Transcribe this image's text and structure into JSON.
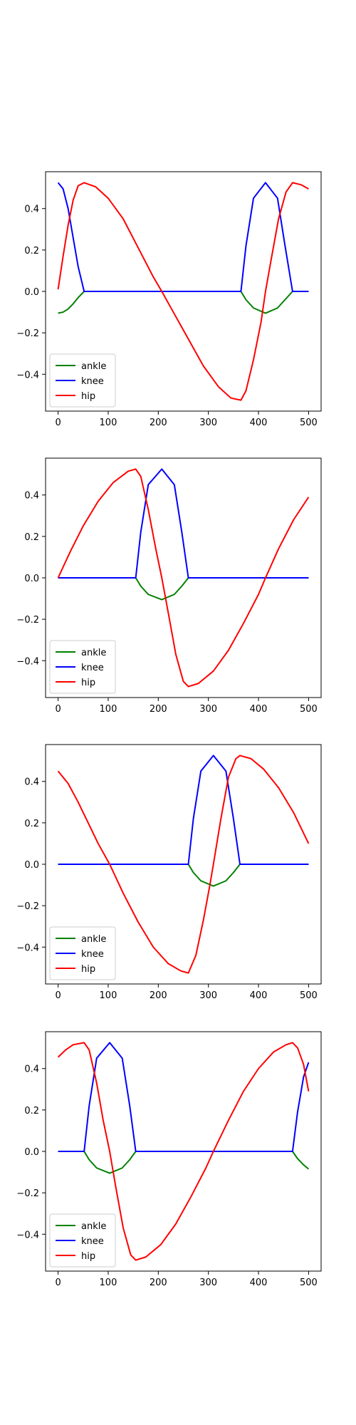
{
  "chart_data": [
    {
      "type": "line",
      "xlim": [
        -25,
        525
      ],
      "ylim": [
        -0.578,
        0.578
      ],
      "xticks": [
        0,
        100,
        200,
        300,
        400,
        500
      ],
      "yticks": [
        -0.4,
        -0.2,
        0.0,
        0.2,
        0.4
      ],
      "xtick_labels": [
        "0",
        "100",
        "200",
        "300",
        "400",
        "500"
      ],
      "ytick_labels": [
        "−0.4",
        "−0.2",
        "0.0",
        "0.2",
        "0.4"
      ],
      "legend": "lower-left",
      "grid": false,
      "series": [
        {
          "name": "ankle",
          "color": "#008000",
          "points": [
            [
              0,
              -0.105
            ],
            [
              10,
              -0.1
            ],
            [
              20,
              -0.085
            ],
            [
              30,
              -0.06
            ],
            [
              40,
              -0.03
            ],
            [
              52,
              0.0
            ],
            [
              365,
              0.0
            ],
            [
              375,
              -0.04
            ],
            [
              390,
              -0.08
            ],
            [
              414,
              -0.105
            ],
            [
              438,
              -0.08
            ],
            [
              453,
              -0.04
            ],
            [
              468,
              0.0
            ],
            [
              500,
              0.0
            ]
          ]
        },
        {
          "name": "knee",
          "color": "#0000ff",
          "points": [
            [
              0,
              0.525
            ],
            [
              10,
              0.495
            ],
            [
              20,
              0.4
            ],
            [
              30,
              0.26
            ],
            [
              40,
              0.12
            ],
            [
              52,
              0.0
            ],
            [
              365,
              0.0
            ],
            [
              375,
              0.22
            ],
            [
              390,
              0.45
            ],
            [
              414,
              0.525
            ],
            [
              438,
              0.45
            ],
            [
              453,
              0.22
            ],
            [
              468,
              0.0
            ],
            [
              500,
              0.0
            ]
          ]
        },
        {
          "name": "hip",
          "color": "#ff0000",
          "points": [
            [
              0,
              0.01
            ],
            [
              10,
              0.17
            ],
            [
              20,
              0.32
            ],
            [
              30,
              0.44
            ],
            [
              40,
              0.51
            ],
            [
              52,
              0.525
            ],
            [
              75,
              0.505
            ],
            [
              100,
              0.45
            ],
            [
              130,
              0.35
            ],
            [
              160,
              0.21
            ],
            [
              190,
              0.07
            ],
            [
              207,
              0.0
            ],
            [
              230,
              -0.1
            ],
            [
              260,
              -0.23
            ],
            [
              290,
              -0.36
            ],
            [
              320,
              -0.46
            ],
            [
              345,
              -0.515
            ],
            [
              365,
              -0.525
            ],
            [
              375,
              -0.48
            ],
            [
              390,
              -0.33
            ],
            [
              405,
              -0.15
            ],
            [
              414,
              0.0
            ],
            [
              425,
              0.15
            ],
            [
              440,
              0.35
            ],
            [
              455,
              0.48
            ],
            [
              468,
              0.525
            ],
            [
              485,
              0.515
            ],
            [
              500,
              0.495
            ]
          ]
        }
      ]
    },
    {
      "type": "line",
      "xlim": [
        -25,
        525
      ],
      "ylim": [
        -0.578,
        0.578
      ],
      "xticks": [
        0,
        100,
        200,
        300,
        400,
        500
      ],
      "yticks": [
        -0.4,
        -0.2,
        0.0,
        0.2,
        0.4
      ],
      "xtick_labels": [
        "0",
        "100",
        "200",
        "300",
        "400",
        "500"
      ],
      "ytick_labels": [
        "−0.4",
        "−0.2",
        "0.0",
        "0.2",
        "0.4"
      ],
      "legend": "lower-left",
      "grid": false,
      "series": [
        {
          "name": "ankle",
          "color": "#008000",
          "points": [
            [
              0,
              0.0
            ],
            [
              155,
              0.0
            ],
            [
              165,
              -0.04
            ],
            [
              180,
              -0.08
            ],
            [
              207,
              -0.105
            ],
            [
              232,
              -0.08
            ],
            [
              247,
              -0.04
            ],
            [
              260,
              0.0
            ],
            [
              500,
              0.0
            ]
          ]
        },
        {
          "name": "knee",
          "color": "#0000ff",
          "points": [
            [
              0,
              0.0
            ],
            [
              155,
              0.0
            ],
            [
              165,
              0.22
            ],
            [
              180,
              0.45
            ],
            [
              207,
              0.525
            ],
            [
              232,
              0.45
            ],
            [
              247,
              0.22
            ],
            [
              260,
              0.0
            ],
            [
              500,
              0.0
            ]
          ]
        },
        {
          "name": "hip",
          "color": "#ff0000",
          "points": [
            [
              0,
              0.0
            ],
            [
              25,
              0.13
            ],
            [
              50,
              0.25
            ],
            [
              80,
              0.37
            ],
            [
              110,
              0.46
            ],
            [
              140,
              0.515
            ],
            [
              155,
              0.525
            ],
            [
              165,
              0.49
            ],
            [
              180,
              0.33
            ],
            [
              195,
              0.14
            ],
            [
              207,
              0.0
            ],
            [
              220,
              -0.17
            ],
            [
              235,
              -0.37
            ],
            [
              250,
              -0.5
            ],
            [
              260,
              -0.525
            ],
            [
              280,
              -0.51
            ],
            [
              310,
              -0.45
            ],
            [
              340,
              -0.35
            ],
            [
              370,
              -0.22
            ],
            [
              400,
              -0.08
            ],
            [
              414,
              0.0
            ],
            [
              440,
              0.14
            ],
            [
              470,
              0.28
            ],
            [
              500,
              0.39
            ]
          ]
        }
      ]
    },
    {
      "type": "line",
      "xlim": [
        -25,
        525
      ],
      "ylim": [
        -0.578,
        0.578
      ],
      "xticks": [
        0,
        100,
        200,
        300,
        400,
        500
      ],
      "yticks": [
        -0.4,
        -0.2,
        0.0,
        0.2,
        0.4
      ],
      "xtick_labels": [
        "0",
        "100",
        "200",
        "300",
        "400",
        "500"
      ],
      "ytick_labels": [
        "−0.4",
        "−0.2",
        "0.0",
        "0.2",
        "0.4"
      ],
      "legend": "lower-left",
      "grid": false,
      "series": [
        {
          "name": "ankle",
          "color": "#008000",
          "points": [
            [
              0,
              0.0
            ],
            [
              260,
              0.0
            ],
            [
              270,
              -0.04
            ],
            [
              285,
              -0.08
            ],
            [
              310,
              -0.105
            ],
            [
              335,
              -0.08
            ],
            [
              350,
              -0.04
            ],
            [
              363,
              0.0
            ],
            [
              500,
              0.0
            ]
          ]
        },
        {
          "name": "knee",
          "color": "#0000ff",
          "points": [
            [
              0,
              0.0
            ],
            [
              260,
              0.0
            ],
            [
              270,
              0.22
            ],
            [
              285,
              0.45
            ],
            [
              310,
              0.525
            ],
            [
              335,
              0.45
            ],
            [
              350,
              0.22
            ],
            [
              363,
              0.0
            ],
            [
              500,
              0.0
            ]
          ]
        },
        {
          "name": "hip",
          "color": "#ff0000",
          "points": [
            [
              0,
              0.45
            ],
            [
              20,
              0.39
            ],
            [
              40,
              0.3
            ],
            [
              60,
              0.2
            ],
            [
              80,
              0.1
            ],
            [
              103,
              0.0
            ],
            [
              130,
              -0.14
            ],
            [
              160,
              -0.28
            ],
            [
              190,
              -0.4
            ],
            [
              220,
              -0.48
            ],
            [
              245,
              -0.515
            ],
            [
              260,
              -0.525
            ],
            [
              275,
              -0.44
            ],
            [
              290,
              -0.27
            ],
            [
              303,
              -0.1
            ],
            [
              310,
              0.0
            ],
            [
              325,
              0.22
            ],
            [
              340,
              0.42
            ],
            [
              355,
              0.51
            ],
            [
              363,
              0.525
            ],
            [
              385,
              0.51
            ],
            [
              410,
              0.46
            ],
            [
              440,
              0.37
            ],
            [
              470,
              0.25
            ],
            [
              500,
              0.1
            ]
          ]
        }
      ]
    },
    {
      "type": "line",
      "xlim": [
        -25,
        525
      ],
      "ylim": [
        -0.578,
        0.578
      ],
      "xticks": [
        0,
        100,
        200,
        300,
        400,
        500
      ],
      "yticks": [
        -0.4,
        -0.2,
        0.0,
        0.2,
        0.4
      ],
      "xtick_labels": [
        "0",
        "100",
        "200",
        "300",
        "400",
        "500"
      ],
      "ytick_labels": [
        "−0.4",
        "−0.2",
        "0.0",
        "0.2",
        "0.4"
      ],
      "legend": "lower-left",
      "grid": false,
      "series": [
        {
          "name": "ankle",
          "color": "#008000",
          "points": [
            [
              0,
              0.0
            ],
            [
              52,
              0.0
            ],
            [
              62,
              -0.04
            ],
            [
              77,
              -0.08
            ],
            [
              103,
              -0.105
            ],
            [
              128,
              -0.08
            ],
            [
              143,
              -0.04
            ],
            [
              155,
              0.0
            ],
            [
              468,
              0.0
            ],
            [
              478,
              -0.035
            ],
            [
              490,
              -0.065
            ],
            [
              500,
              -0.085
            ]
          ]
        },
        {
          "name": "knee",
          "color": "#0000ff",
          "points": [
            [
              0,
              0.0
            ],
            [
              52,
              0.0
            ],
            [
              62,
              0.22
            ],
            [
              77,
              0.45
            ],
            [
              103,
              0.525
            ],
            [
              128,
              0.45
            ],
            [
              143,
              0.22
            ],
            [
              155,
              0.0
            ],
            [
              468,
              0.0
            ],
            [
              478,
              0.19
            ],
            [
              490,
              0.36
            ],
            [
              500,
              0.43
            ]
          ]
        },
        {
          "name": "hip",
          "color": "#ff0000",
          "points": [
            [
              0,
              0.455
            ],
            [
              15,
              0.49
            ],
            [
              30,
              0.515
            ],
            [
              52,
              0.525
            ],
            [
              62,
              0.49
            ],
            [
              77,
              0.33
            ],
            [
              90,
              0.15
            ],
            [
              103,
              0.0
            ],
            [
              115,
              -0.17
            ],
            [
              130,
              -0.37
            ],
            [
              145,
              -0.5
            ],
            [
              155,
              -0.525
            ],
            [
              175,
              -0.51
            ],
            [
              205,
              -0.45
            ],
            [
              235,
              -0.35
            ],
            [
              265,
              -0.22
            ],
            [
              295,
              -0.08
            ],
            [
              310,
              0.0
            ],
            [
              340,
              0.15
            ],
            [
              370,
              0.29
            ],
            [
              400,
              0.4
            ],
            [
              430,
              0.48
            ],
            [
              455,
              0.515
            ],
            [
              468,
              0.525
            ],
            [
              478,
              0.5
            ],
            [
              490,
              0.42
            ],
            [
              500,
              0.29
            ]
          ]
        }
      ]
    }
  ]
}
